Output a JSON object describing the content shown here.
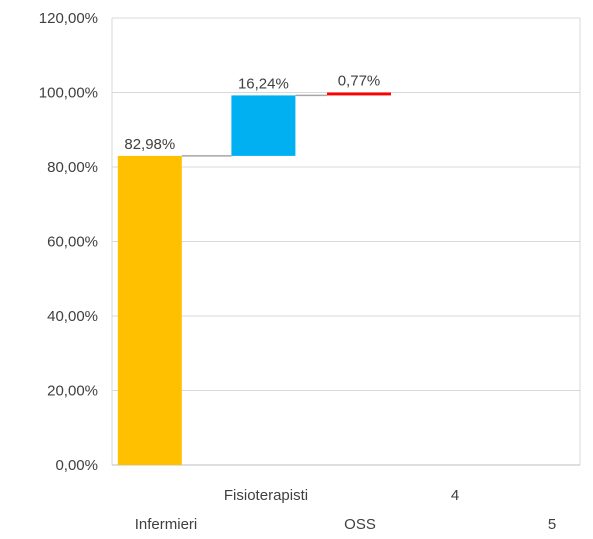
{
  "chart_data": {
    "type": "bar",
    "subtype": "waterfall",
    "title": "",
    "xlabel": "",
    "ylabel": "",
    "ylim": [
      0,
      120
    ],
    "y_ticks": [
      "0,00%",
      "20,00%",
      "40,00%",
      "60,00%",
      "80,00%",
      "100,00%",
      "120,00%"
    ],
    "categories": [
      "Infermieri",
      "Fisioterapisti",
      "OSS",
      "4",
      "5"
    ],
    "values": [
      82.98,
      16.24,
      0.77,
      null,
      null
    ],
    "data_labels": [
      "82,98%",
      "16,24%",
      "0,77%",
      "",
      ""
    ],
    "colors": [
      "#FFC000",
      "#00B0F0",
      "#FF0000"
    ],
    "grid": true,
    "legend": "none"
  }
}
